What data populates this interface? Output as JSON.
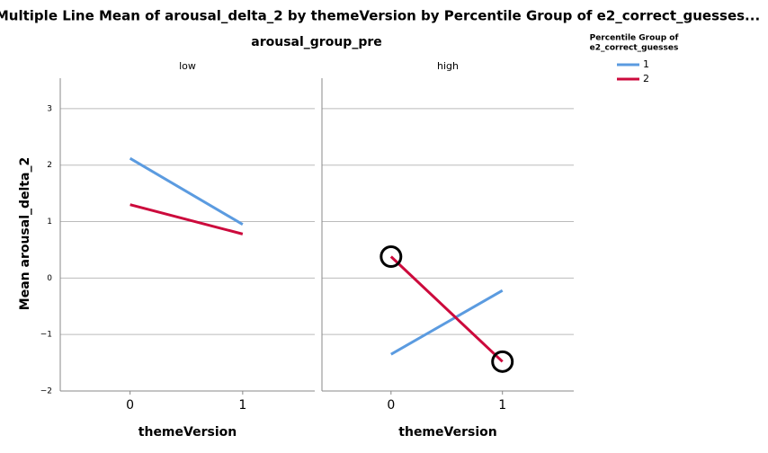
{
  "chart_data": {
    "type": "line",
    "title": "Multiple Line Mean of arousal_delta_2 by themeVersion by Percentile Group of e2_correct_guesses...",
    "facet_label": "arousal_group_pre",
    "y_label": "Mean arousal_delta_2",
    "legend_title": [
      "Percentile Group of",
      "e2_correct_guesses"
    ],
    "legend_position": "top-right",
    "grid": true,
    "xlim": [
      -0.62,
      1.64
    ],
    "xticks": [
      0,
      1
    ],
    "ylim": [
      -2,
      3.54
    ],
    "yticks": [
      {
        "value": -2,
        "label": "−2"
      },
      {
        "value": -1,
        "label": "−1"
      },
      0,
      1,
      2,
      3
    ],
    "panels": [
      {
        "name": "low",
        "x_label": "themeVersion",
        "x": [
          0,
          1
        ],
        "series": [
          {
            "name": "1",
            "color": "#5b9be0",
            "values": [
              2.12,
              0.95
            ]
          },
          {
            "name": "2",
            "color": "#cc0a3c",
            "values": [
              1.3,
              0.78
            ]
          }
        ]
      },
      {
        "name": "high",
        "x_label": "themeVersion",
        "x": [
          0,
          1
        ],
        "series": [
          {
            "name": "1",
            "color": "#5b9be0",
            "values": [
              -1.35,
              -0.22
            ]
          },
          {
            "name": "2",
            "color": "#cc0a3c",
            "values": [
              0.38,
              -1.48
            ],
            "circled": true
          }
        ]
      }
    ]
  }
}
